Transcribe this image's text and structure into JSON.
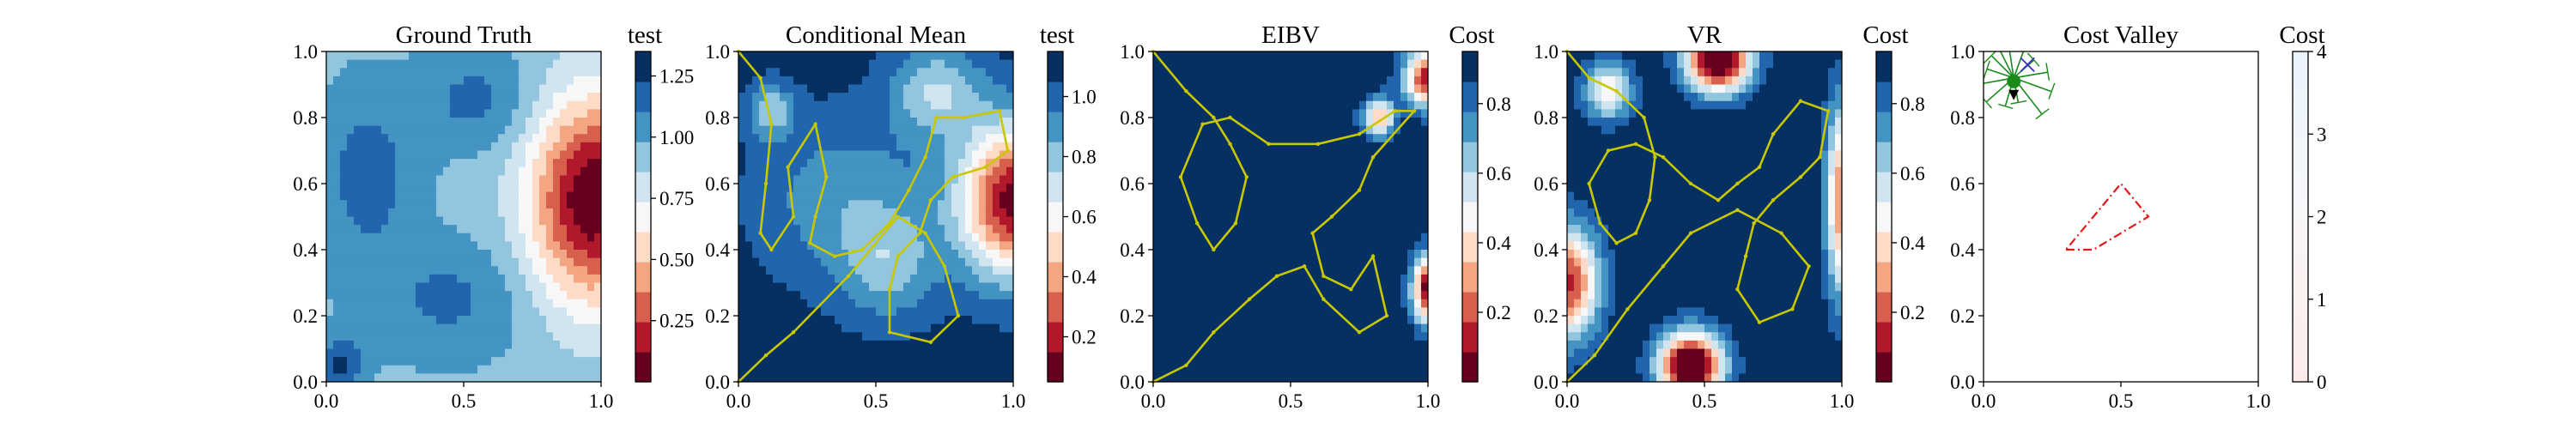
{
  "figure": {
    "panels": [
      {
        "id": "ground-truth",
        "title": "Ground Truth",
        "colorbar_label": "test",
        "xticks": [
          "0.0",
          "0.5",
          "1.0"
        ],
        "yticks": [
          "0.0",
          "0.2",
          "0.4",
          "0.6",
          "0.8",
          "1.0"
        ],
        "colorbar_ticks": [
          "0.25",
          "0.50",
          "0.75",
          "1.00",
          "1.25"
        ]
      },
      {
        "id": "conditional-mean",
        "title": "Conditional Mean",
        "colorbar_label": "test",
        "xticks": [
          "0.0",
          "0.5",
          "1.0"
        ],
        "yticks": [
          "0.0",
          "0.2",
          "0.4",
          "0.6",
          "0.8",
          "1.0"
        ],
        "colorbar_ticks": [
          "0.2",
          "0.4",
          "0.6",
          "0.8",
          "1.0"
        ]
      },
      {
        "id": "eibv",
        "title": "EIBV",
        "colorbar_label": "Cost",
        "xticks": [
          "0.0",
          "0.5",
          "1.0"
        ],
        "yticks": [
          "0.0",
          "0.2",
          "0.4",
          "0.6",
          "0.8",
          "1.0"
        ],
        "colorbar_ticks": [
          "0.2",
          "0.4",
          "0.6",
          "0.8"
        ]
      },
      {
        "id": "vr",
        "title": "VR",
        "colorbar_label": "Cost",
        "xticks": [
          "0.0",
          "0.5",
          "1.0"
        ],
        "yticks": [
          "0.0",
          "0.2",
          "0.4",
          "0.6",
          "0.8",
          "1.0"
        ],
        "colorbar_ticks": [
          "0.2",
          "0.4",
          "0.6",
          "0.8"
        ]
      },
      {
        "id": "cost-valley",
        "title": "Cost Valley",
        "colorbar_label": "Cost",
        "xticks": [
          "0.0",
          "0.5",
          "1.0"
        ],
        "yticks": [
          "0.0",
          "0.2",
          "0.4",
          "0.6",
          "0.8",
          "1.0"
        ],
        "colorbar_ticks": [
          "0",
          "1",
          "2",
          "3",
          "4"
        ]
      }
    ]
  },
  "colors": {
    "rdbu": [
      "#67001f",
      "#b2182b",
      "#d6604d",
      "#f4a582",
      "#fddbc7",
      "#f7f7f7",
      "#d1e5f0",
      "#92c5de",
      "#4393c3",
      "#2166ac",
      "#053061"
    ],
    "path": "#c8c800",
    "polygon": "#e41a1c",
    "tree": "#1a8a1a",
    "marker_x": "#3333cc"
  },
  "chart_data": [
    {
      "type": "heatmap",
      "title": "Ground Truth",
      "colorbar_label": "test",
      "xlim": [
        0,
        1
      ],
      "ylim": [
        0,
        1
      ],
      "clim": [
        0,
        1.35
      ],
      "base_value": 0.95,
      "features": [
        {
          "x": 0.97,
          "y": 0.55,
          "sx": 0.16,
          "sy": 0.22,
          "amp": -0.95
        },
        {
          "x": 0.15,
          "y": 0.62,
          "sx": 0.12,
          "sy": 0.18,
          "amp": 0.22
        },
        {
          "x": 0.55,
          "y": 0.85,
          "sx": 0.15,
          "sy": 0.1,
          "amp": 0.2
        },
        {
          "x": 0.45,
          "y": 0.25,
          "sx": 0.2,
          "sy": 0.12,
          "amp": 0.18
        },
        {
          "x": 0.05,
          "y": 0.05,
          "sx": 0.06,
          "sy": 0.06,
          "amp": 0.3
        }
      ]
    },
    {
      "type": "heatmap",
      "title": "Conditional Mean",
      "colorbar_label": "test",
      "xlim": [
        0,
        1
      ],
      "ylim": [
        0,
        1
      ],
      "clim": [
        0.05,
        1.15
      ],
      "base_value": 1.1,
      "features": [
        {
          "x": 1.0,
          "y": 0.55,
          "sx": 0.14,
          "sy": 0.16,
          "amp": -1.0
        },
        {
          "x": 0.38,
          "y": 0.55,
          "sx": 0.22,
          "sy": 0.18,
          "amp": -0.22
        },
        {
          "x": 0.72,
          "y": 0.88,
          "sx": 0.12,
          "sy": 0.1,
          "amp": -0.35
        },
        {
          "x": 0.55,
          "y": 0.35,
          "sx": 0.12,
          "sy": 0.12,
          "amp": -0.25
        },
        {
          "x": 0.12,
          "y": 0.82,
          "sx": 0.06,
          "sy": 0.06,
          "amp": -0.3
        }
      ],
      "path": [
        [
          0.0,
          1.0
        ],
        [
          0.08,
          0.92
        ],
        [
          0.12,
          0.78
        ],
        [
          0.1,
          0.6
        ],
        [
          0.08,
          0.45
        ],
        [
          0.12,
          0.4
        ],
        [
          0.2,
          0.5
        ],
        [
          0.18,
          0.65
        ],
        [
          0.28,
          0.78
        ],
        [
          0.32,
          0.62
        ],
        [
          0.28,
          0.5
        ],
        [
          0.26,
          0.42
        ],
        [
          0.35,
          0.38
        ],
        [
          0.45,
          0.4
        ],
        [
          0.55,
          0.48
        ],
        [
          0.62,
          0.58
        ],
        [
          0.68,
          0.68
        ],
        [
          0.72,
          0.8
        ],
        [
          0.82,
          0.8
        ],
        [
          0.95,
          0.82
        ],
        [
          0.98,
          0.7
        ],
        [
          0.9,
          0.65
        ],
        [
          0.78,
          0.62
        ],
        [
          0.7,
          0.55
        ],
        [
          0.66,
          0.45
        ],
        [
          0.58,
          0.38
        ],
        [
          0.55,
          0.28
        ],
        [
          0.55,
          0.15
        ],
        [
          0.7,
          0.12
        ],
        [
          0.8,
          0.2
        ],
        [
          0.75,
          0.35
        ],
        [
          0.68,
          0.45
        ],
        [
          0.58,
          0.5
        ],
        [
          0.4,
          0.32
        ],
        [
          0.2,
          0.15
        ],
        [
          0.1,
          0.08
        ],
        [
          0.0,
          0.0
        ]
      ]
    },
    {
      "type": "heatmap",
      "title": "EIBV",
      "colorbar_label": "Cost",
      "xlim": [
        0,
        1
      ],
      "ylim": [
        0,
        1
      ],
      "clim": [
        0,
        0.95
      ],
      "base_value": 0.93,
      "features": [
        {
          "x": 1.0,
          "y": 0.92,
          "sx": 0.06,
          "sy": 0.06,
          "amp": -0.85
        },
        {
          "x": 0.82,
          "y": 0.8,
          "sx": 0.04,
          "sy": 0.04,
          "amp": -0.6
        },
        {
          "x": 1.0,
          "y": 0.28,
          "sx": 0.04,
          "sy": 0.07,
          "amp": -0.9
        }
      ],
      "path": [
        [
          0.0,
          1.0
        ],
        [
          0.12,
          0.88
        ],
        [
          0.22,
          0.8
        ],
        [
          0.28,
          0.72
        ],
        [
          0.34,
          0.62
        ],
        [
          0.3,
          0.48
        ],
        [
          0.22,
          0.4
        ],
        [
          0.16,
          0.48
        ],
        [
          0.1,
          0.62
        ],
        [
          0.18,
          0.78
        ],
        [
          0.28,
          0.8
        ],
        [
          0.42,
          0.72
        ],
        [
          0.6,
          0.72
        ],
        [
          0.75,
          0.75
        ],
        [
          0.88,
          0.82
        ],
        [
          0.95,
          0.82
        ],
        [
          0.8,
          0.68
        ],
        [
          0.75,
          0.58
        ],
        [
          0.65,
          0.5
        ],
        [
          0.58,
          0.45
        ],
        [
          0.62,
          0.32
        ],
        [
          0.72,
          0.28
        ],
        [
          0.8,
          0.38
        ],
        [
          0.85,
          0.2
        ],
        [
          0.75,
          0.15
        ],
        [
          0.62,
          0.25
        ],
        [
          0.55,
          0.35
        ],
        [
          0.45,
          0.32
        ],
        [
          0.35,
          0.25
        ],
        [
          0.22,
          0.15
        ],
        [
          0.12,
          0.05
        ],
        [
          0.0,
          0.0
        ]
      ]
    },
    {
      "type": "heatmap",
      "title": "VR",
      "colorbar_label": "Cost",
      "xlim": [
        0,
        1
      ],
      "ylim": [
        0,
        1
      ],
      "clim": [
        0,
        0.95
      ],
      "base_value": 0.93,
      "features": [
        {
          "x": 0.55,
          "y": 0.98,
          "sx": 0.08,
          "sy": 0.07,
          "amp": -1.1
        },
        {
          "x": 0.45,
          "y": 0.05,
          "sx": 0.08,
          "sy": 0.07,
          "amp": -1.1
        },
        {
          "x": 0.0,
          "y": 0.3,
          "sx": 0.08,
          "sy": 0.12,
          "amp": -0.8
        },
        {
          "x": 1.0,
          "y": 0.55,
          "sx": 0.04,
          "sy": 0.2,
          "amp": -0.7
        },
        {
          "x": 0.15,
          "y": 0.88,
          "sx": 0.06,
          "sy": 0.06,
          "amp": -0.5
        }
      ],
      "path": [
        [
          0.0,
          1.0
        ],
        [
          0.08,
          0.92
        ],
        [
          0.18,
          0.88
        ],
        [
          0.28,
          0.8
        ],
        [
          0.32,
          0.68
        ],
        [
          0.3,
          0.55
        ],
        [
          0.25,
          0.45
        ],
        [
          0.18,
          0.42
        ],
        [
          0.12,
          0.48
        ],
        [
          0.08,
          0.6
        ],
        [
          0.15,
          0.7
        ],
        [
          0.25,
          0.72
        ],
        [
          0.35,
          0.68
        ],
        [
          0.45,
          0.6
        ],
        [
          0.55,
          0.55
        ],
        [
          0.62,
          0.6
        ],
        [
          0.7,
          0.65
        ],
        [
          0.75,
          0.75
        ],
        [
          0.85,
          0.85
        ],
        [
          0.95,
          0.82
        ],
        [
          0.92,
          0.68
        ],
        [
          0.85,
          0.62
        ],
        [
          0.75,
          0.55
        ],
        [
          0.68,
          0.48
        ],
        [
          0.65,
          0.38
        ],
        [
          0.62,
          0.28
        ],
        [
          0.7,
          0.18
        ],
        [
          0.82,
          0.22
        ],
        [
          0.88,
          0.35
        ],
        [
          0.78,
          0.45
        ],
        [
          0.62,
          0.52
        ],
        [
          0.45,
          0.45
        ],
        [
          0.35,
          0.35
        ],
        [
          0.22,
          0.22
        ],
        [
          0.1,
          0.08
        ],
        [
          0.0,
          0.0
        ]
      ]
    },
    {
      "type": "heatmap",
      "title": "Cost Valley",
      "colorbar_label": "Cost",
      "xlim": [
        0,
        1
      ],
      "ylim": [
        0,
        1
      ],
      "clim": [
        0,
        4
      ],
      "base_value": 0.0,
      "polygon": [
        [
          0.3,
          0.4
        ],
        [
          0.4,
          0.4
        ],
        [
          0.6,
          0.5
        ],
        [
          0.5,
          0.6
        ],
        [
          0.3,
          0.4
        ]
      ],
      "tree_origin": [
        0.11,
        0.92
      ],
      "marker_x": [
        0.16,
        0.96
      ]
    }
  ]
}
